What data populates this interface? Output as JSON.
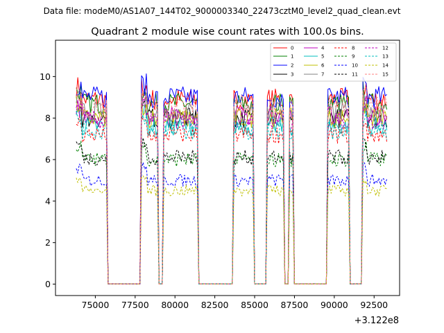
{
  "suptitle": "Data file: modeM0/AS1A07_144T02_9000003340_22473cztM0_level2_quad_clean.evt",
  "chart_data": {
    "type": "line",
    "title": "Quadrant 2 module wise count rates with 100.0s bins.",
    "xlabel": "",
    "ylabel": "",
    "x_offset_label": "+3.122e8",
    "xlim": [
      72500,
      94100
    ],
    "ylim": [
      -0.55,
      11.75
    ],
    "xticks": [
      75000,
      77500,
      80000,
      82500,
      85000,
      87500,
      90000,
      92500
    ],
    "xtick_labels": [
      "75000",
      "77500",
      "80000",
      "82500",
      "85000",
      "87500",
      "90000",
      "92500"
    ],
    "yticks": [
      0,
      2,
      4,
      6,
      8,
      10
    ],
    "ytick_labels": [
      "0",
      "2",
      "4",
      "6",
      "8",
      "10"
    ],
    "legend_location": "top-right",
    "on_intervals": [
      [
        73800,
        75700
      ],
      [
        77900,
        78900
      ],
      [
        79300,
        81400
      ],
      [
        83700,
        84900
      ],
      [
        85800,
        86800
      ],
      [
        87200,
        87400
      ],
      [
        89600,
        90900
      ],
      [
        91800,
        93300
      ]
    ],
    "series": [
      {
        "name": "0",
        "color": "#ff0000",
        "dash": "solid",
        "level": 8.9
      },
      {
        "name": "1",
        "color": "#008000",
        "dash": "solid",
        "level": 8.7
      },
      {
        "name": "2",
        "color": "#0000ff",
        "dash": "solid",
        "level": 9.0
      },
      {
        "name": "3",
        "color": "#000000",
        "dash": "solid",
        "level": 8.0
      },
      {
        "name": "4",
        "color": "#bf00bf",
        "dash": "solid",
        "level": 8.1
      },
      {
        "name": "5",
        "color": "#00bfbf",
        "dash": "solid",
        "level": 7.6
      },
      {
        "name": "6",
        "color": "#bfbf00",
        "dash": "solid",
        "level": 8.0
      },
      {
        "name": "7",
        "color": "#808080",
        "dash": "solid",
        "level": 8.3
      },
      {
        "name": "8",
        "color": "#ff0000",
        "dash": "dashed",
        "level": 7.2
      },
      {
        "name": "9",
        "color": "#008000",
        "dash": "dashed",
        "level": 6.0
      },
      {
        "name": "10",
        "color": "#0000ff",
        "dash": "dashed",
        "level": 5.0
      },
      {
        "name": "11",
        "color": "#000000",
        "dash": "dashed",
        "level": 6.1
      },
      {
        "name": "12",
        "color": "#bf00bf",
        "dash": "dashed",
        "level": 7.9
      },
      {
        "name": "13",
        "color": "#00bfbf",
        "dash": "dashed",
        "level": 7.4
      },
      {
        "name": "14",
        "color": "#bfbf00",
        "dash": "dashed",
        "level": 4.5
      },
      {
        "name": "15",
        "color": "#ff7f7f",
        "dash": "dashed",
        "level": 8.6
      }
    ]
  }
}
